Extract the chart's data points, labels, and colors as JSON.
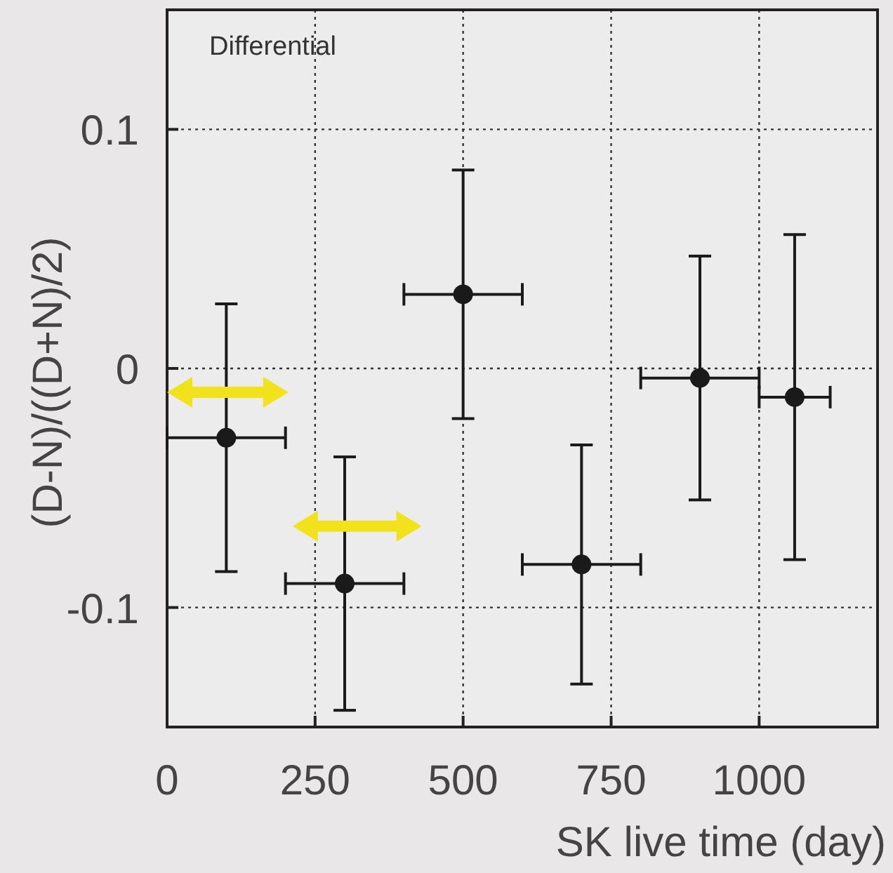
{
  "chart_data": {
    "type": "scatter",
    "xlabel": "SK live time (day)",
    "ylabel": "(D-N)/((D+N)/2)",
    "annotations": [
      "Differential"
    ],
    "x": [
      100,
      300,
      500,
      700,
      900,
      1060
    ],
    "series": [
      {
        "color": "#1a1a1a",
        "values": [
          -0.029,
          -0.09,
          0.031,
          -0.082,
          -0.004,
          -0.012
        ],
        "errors": [
          0.056,
          0.053,
          0.052,
          0.05,
          0.051,
          0.068
        ],
        "xerrors": [
          100,
          100,
          100,
          100,
          100,
          60
        ]
      }
    ],
    "xlim": [
      0,
      1200
    ],
    "ylim": [
      -0.15,
      0.15
    ],
    "xticks": [
      0,
      250,
      500,
      750,
      1000
    ],
    "yticks": [
      -0.1,
      0,
      0.1
    ],
    "grid": true,
    "marker": "circle"
  }
}
